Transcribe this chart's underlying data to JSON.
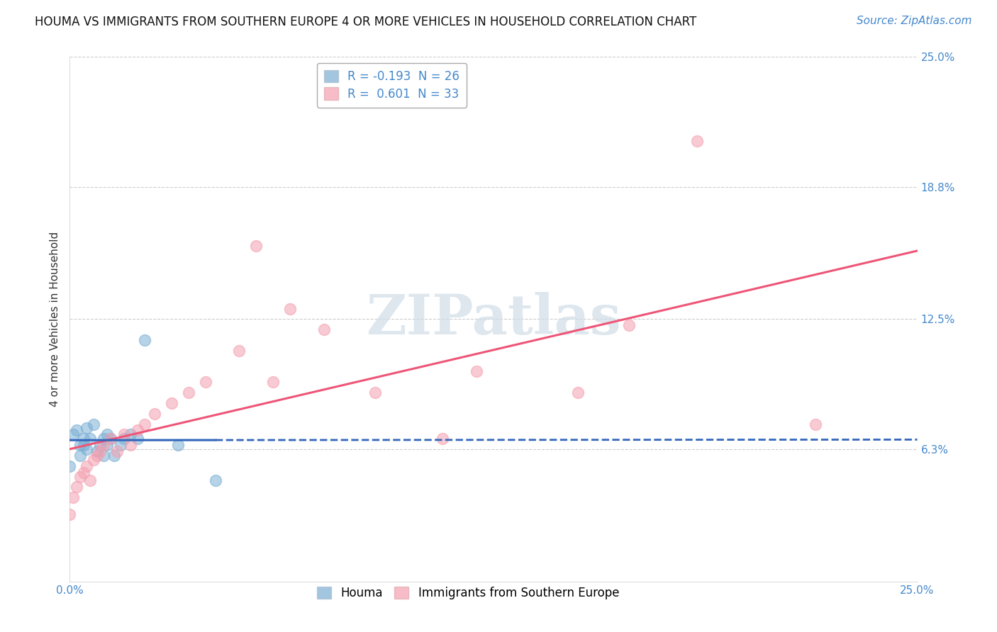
{
  "title": "HOUMA VS IMMIGRANTS FROM SOUTHERN EUROPE 4 OR MORE VEHICLES IN HOUSEHOLD CORRELATION CHART",
  "source": "Source: ZipAtlas.com",
  "ylabel": "4 or more Vehicles in Household",
  "xlim": [
    0.0,
    0.25
  ],
  "ylim": [
    0.0,
    0.25
  ],
  "ytick_labels": [
    "6.3%",
    "12.5%",
    "18.8%",
    "25.0%"
  ],
  "ytick_positions": [
    0.063,
    0.125,
    0.188,
    0.25
  ],
  "legend_entry1": "R = -0.193  N = 26",
  "legend_entry2": "R =  0.601  N = 33",
  "houma_color": "#7bafd4",
  "immigrants_color": "#f4a0b0",
  "trendline_blue": "#3366bb",
  "trendline_pink": "#ee5577",
  "background_color": "#ffffff",
  "watermark_text": "ZIPatlas",
  "grid_color": "#cccccc",
  "houma_x": [
    0.0,
    0.001,
    0.002,
    0.003,
    0.003,
    0.004,
    0.004,
    0.005,
    0.005,
    0.006,
    0.007,
    0.008,
    0.009,
    0.01,
    0.01,
    0.011,
    0.011,
    0.012,
    0.013,
    0.015,
    0.016,
    0.018,
    0.02,
    0.022,
    0.032,
    0.043
  ],
  "houma_y": [
    0.055,
    0.07,
    0.072,
    0.065,
    0.06,
    0.068,
    0.065,
    0.073,
    0.063,
    0.068,
    0.075,
    0.062,
    0.065,
    0.068,
    0.06,
    0.065,
    0.07,
    0.068,
    0.06,
    0.065,
    0.068,
    0.07,
    0.068,
    0.115,
    0.065,
    0.048
  ],
  "immigrants_x": [
    0.0,
    0.001,
    0.002,
    0.003,
    0.004,
    0.005,
    0.006,
    0.007,
    0.008,
    0.009,
    0.01,
    0.012,
    0.014,
    0.016,
    0.018,
    0.02,
    0.022,
    0.025,
    0.03,
    0.035,
    0.04,
    0.05,
    0.055,
    0.06,
    0.065,
    0.075,
    0.09,
    0.11,
    0.12,
    0.15,
    0.165,
    0.185,
    0.22
  ],
  "immigrants_y": [
    0.032,
    0.04,
    0.045,
    0.05,
    0.052,
    0.055,
    0.048,
    0.058,
    0.06,
    0.062,
    0.065,
    0.068,
    0.062,
    0.07,
    0.065,
    0.072,
    0.075,
    0.08,
    0.085,
    0.09,
    0.095,
    0.11,
    0.16,
    0.095,
    0.13,
    0.12,
    0.09,
    0.068,
    0.1,
    0.09,
    0.122,
    0.21,
    0.075
  ],
  "title_fontsize": 12,
  "axis_label_fontsize": 11,
  "tick_fontsize": 11,
  "legend_fontsize": 12,
  "source_fontsize": 11,
  "dot_size": 130
}
